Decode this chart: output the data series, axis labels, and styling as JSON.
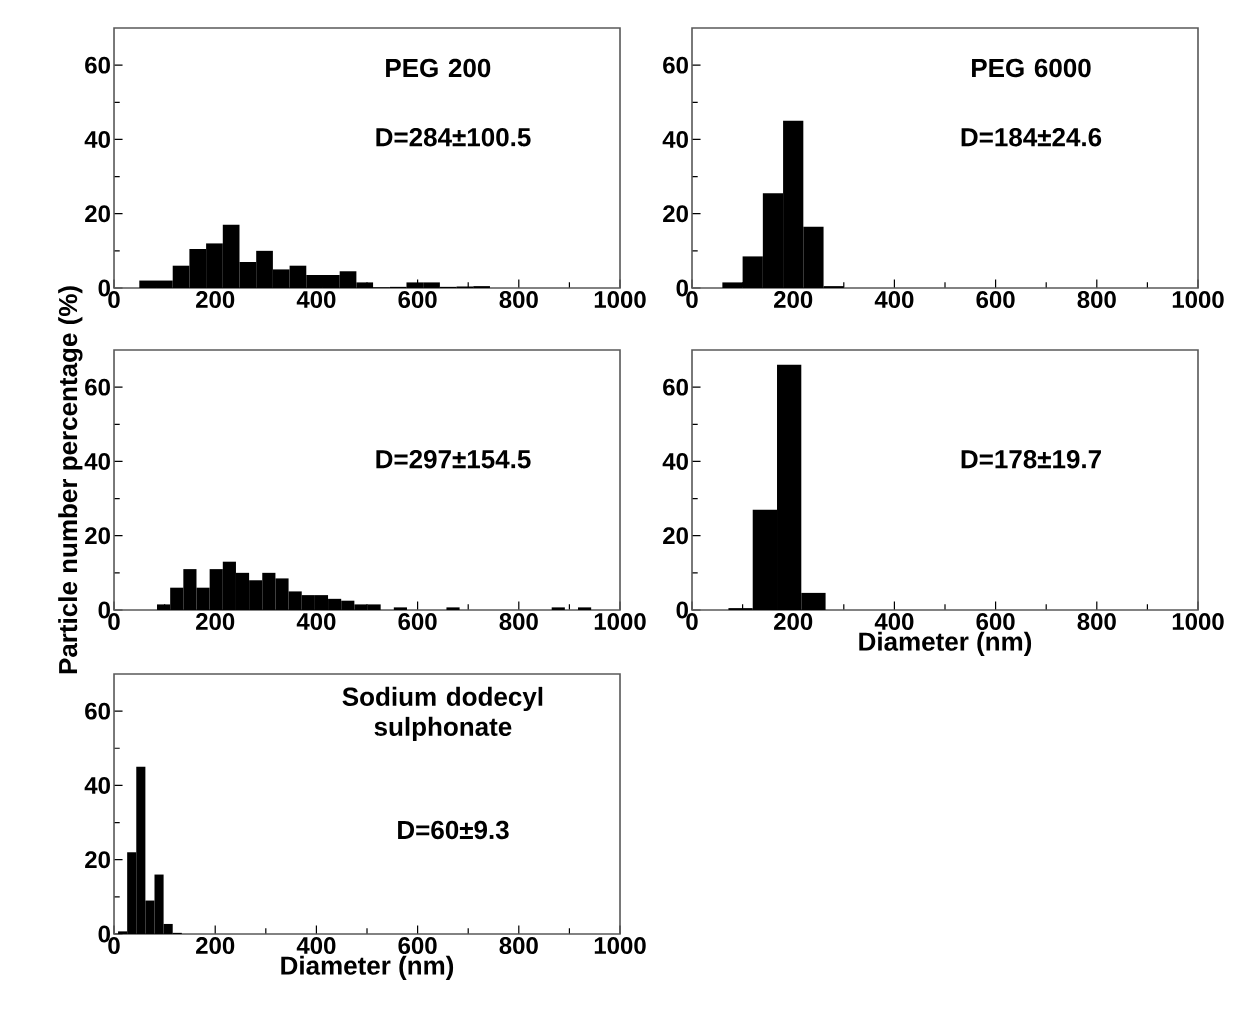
{
  "chart_data": [
    {
      "type": "histogram",
      "title": "PEG 200",
      "annotations": [
        "D=284±100.5"
      ],
      "color": "#000000",
      "bins": [
        50,
        83,
        116,
        149,
        182,
        215,
        248,
        281,
        314,
        347,
        380,
        413,
        446,
        479,
        512,
        545,
        578,
        611,
        644,
        677,
        710,
        743
      ],
      "values": [
        2,
        2,
        6,
        10.5,
        12,
        17,
        7,
        10,
        5,
        6,
        3.5,
        3.5,
        4.5,
        1.5,
        0.2,
        0.3,
        1.5,
        1.5,
        0.3,
        0.4,
        0.5
      ],
      "xlim": [
        0,
        1000
      ],
      "xticks": [
        0,
        200,
        400,
        600,
        800,
        1000
      ],
      "ylim": [
        0,
        70
      ],
      "yticks": [
        0,
        20,
        40,
        60
      ]
    },
    {
      "type": "histogram",
      "title": "PEG 6000",
      "annotations": [
        "D=184±24.6"
      ],
      "color": "#000000",
      "bins": [
        60,
        100,
        140,
        180,
        220,
        260,
        300
      ],
      "values": [
        1.5,
        8.5,
        25.5,
        45,
        16.5,
        0.5
      ],
      "xlim": [
        0,
        1000
      ],
      "xticks": [
        0,
        200,
        400,
        600,
        800,
        1000
      ],
      "ylim": [
        0,
        70
      ],
      "yticks": [
        0,
        20,
        40,
        60
      ]
    },
    {
      "type": "histogram",
      "annotations": [
        "D=297±154.5"
      ],
      "color": "#000000",
      "ylabel": "Particle number percentage (%)",
      "bins": [
        85,
        111,
        137,
        163,
        189,
        215,
        241,
        267,
        293,
        319,
        345,
        371,
        397,
        423,
        449,
        475,
        501,
        527,
        553,
        579,
        605,
        631,
        657,
        683,
        709,
        735,
        761,
        787,
        813,
        839,
        865,
        891,
        917,
        943,
        969
      ],
      "values": [
        1.5,
        6,
        11,
        6,
        11,
        13,
        10,
        8,
        10,
        8.5,
        5,
        4,
        4,
        3,
        2.5,
        1.5,
        1.5,
        0,
        0.7,
        0,
        0,
        0,
        0.7,
        0,
        0,
        0,
        0,
        0,
        0,
        0,
        0.7,
        0,
        0.7,
        0
      ],
      "xlim": [
        0,
        1000
      ],
      "xticks": [
        0,
        200,
        400,
        600,
        800,
        1000
      ],
      "ylim": [
        0,
        70
      ],
      "yticks": [
        0,
        20,
        40,
        60
      ]
    },
    {
      "type": "histogram",
      "annotations": [
        "D=178±19.7"
      ],
      "color": "#000000",
      "xlabel": "Diameter (nm)",
      "bins": [
        72,
        120,
        168,
        216,
        264
      ],
      "values": [
        0.5,
        27,
        66,
        4.6
      ],
      "xlim": [
        0,
        1000
      ],
      "xticks": [
        0,
        200,
        400,
        600,
        800,
        1000
      ],
      "ylim": [
        0,
        70
      ],
      "yticks": [
        0,
        20,
        40,
        60
      ]
    },
    {
      "type": "histogram",
      "title": "Sodium dodecyl sulphonate",
      "annotations": [
        "D=60±9.3"
      ],
      "color": "#000000",
      "xlabel": "Diameter (nm)",
      "bins": [
        8,
        26,
        44,
        62,
        80,
        98,
        116,
        134
      ],
      "values": [
        0.7,
        22,
        45,
        9,
        16,
        2.7,
        0.3
      ],
      "xlim": [
        0,
        1000
      ],
      "xticks": [
        0,
        200,
        400,
        600,
        800,
        1000
      ],
      "ylim": [
        0,
        70
      ],
      "yticks": [
        0,
        20,
        40,
        60
      ]
    }
  ]
}
